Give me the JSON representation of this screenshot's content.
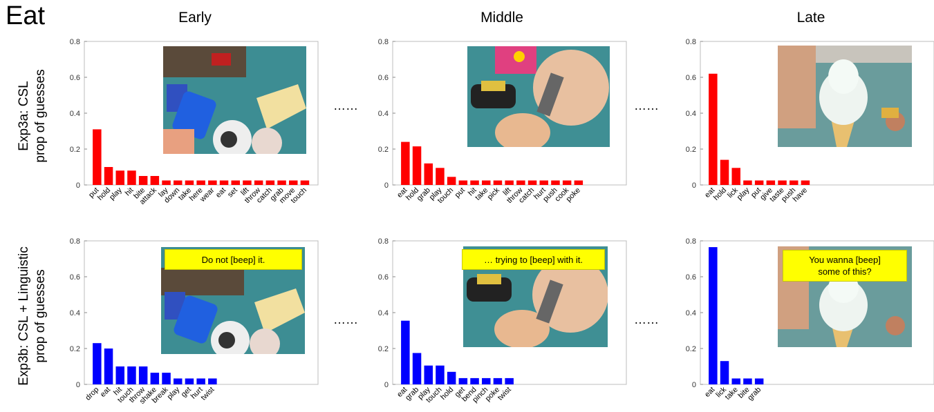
{
  "title": "Eat",
  "columns": [
    "Early",
    "Middle",
    "Late"
  ],
  "rows": [
    {
      "label_line1": "Exp3a: CSL",
      "label_line2": "prop of guesses"
    },
    {
      "label_line1": "Exp3b: CSL + Linguistic",
      "label_line2": "prop of guesses"
    }
  ],
  "ellipsis": "……",
  "colors": {
    "row0": "#ff0000",
    "row1": "#0000ff"
  },
  "captions": [
    "Do not [beep] it.",
    "… trying to [beep] with it.",
    "You wanna [beep]\nsome of this?"
  ],
  "chart_data": [
    {
      "type": "bar",
      "row": 0,
      "col": 0,
      "ylim": [
        0,
        0.8
      ],
      "yticks": [
        "0",
        "0.2",
        "0.4",
        "0.6",
        "0.8"
      ],
      "categories": [
        "put",
        "hold",
        "play",
        "hit",
        "bite",
        "attack",
        "lay",
        "down",
        "take",
        "here",
        "wear",
        "eat",
        "set",
        "lift",
        "throw",
        "catch",
        "grab",
        "move",
        "touch"
      ],
      "values": [
        0.31,
        0.1,
        0.08,
        0.08,
        0.05,
        0.05,
        0.025,
        0.025,
        0.025,
        0.025,
        0.025,
        0.025,
        0.025,
        0.025,
        0.025,
        0.025,
        0.025,
        0.025,
        0.025
      ]
    },
    {
      "type": "bar",
      "row": 0,
      "col": 1,
      "ylim": [
        0,
        0.8
      ],
      "yticks": [
        "0",
        "0.2",
        "0.4",
        "0.6",
        "0.8"
      ],
      "categories": [
        "eat",
        "hold",
        "grab",
        "play",
        "touch",
        "put",
        "hit",
        "take",
        "pick",
        "lift",
        "throw",
        "catch",
        "hurt",
        "push",
        "cook",
        "poke"
      ],
      "values": [
        0.24,
        0.215,
        0.12,
        0.095,
        0.045,
        0.025,
        0.025,
        0.025,
        0.025,
        0.025,
        0.025,
        0.025,
        0.025,
        0.025,
        0.025,
        0.025
      ]
    },
    {
      "type": "bar",
      "row": 0,
      "col": 2,
      "ylim": [
        0,
        0.8
      ],
      "yticks": [
        "0",
        "0.2",
        "0.4",
        "0.6",
        "0.8"
      ],
      "categories": [
        "eat",
        "hold",
        "lick",
        "play",
        "put",
        "give",
        "taste",
        "push",
        "have"
      ],
      "values": [
        0.62,
        0.14,
        0.095,
        0.025,
        0.025,
        0.025,
        0.025,
        0.025,
        0.025
      ]
    },
    {
      "type": "bar",
      "row": 1,
      "col": 0,
      "ylim": [
        0,
        0.8
      ],
      "yticks": [
        "0",
        "0.2",
        "0.4",
        "0.6",
        "0.8"
      ],
      "categories": [
        "drop",
        "eat",
        "hit",
        "touch",
        "throw",
        "shake",
        "break",
        "play",
        "get",
        "hurt",
        "twist"
      ],
      "values": [
        0.23,
        0.2,
        0.1,
        0.1,
        0.1,
        0.065,
        0.065,
        0.033,
        0.033,
        0.033,
        0.033
      ]
    },
    {
      "type": "bar",
      "row": 1,
      "col": 1,
      "ylim": [
        0,
        0.8
      ],
      "yticks": [
        "0",
        "0.2",
        "0.4",
        "0.6",
        "0.8"
      ],
      "categories": [
        "eat",
        "grab",
        "play",
        "touch",
        "hold",
        "get",
        "bend",
        "pinch",
        "poke",
        "twist"
      ],
      "values": [
        0.355,
        0.175,
        0.105,
        0.105,
        0.07,
        0.035,
        0.035,
        0.035,
        0.035,
        0.035
      ]
    },
    {
      "type": "bar",
      "row": 1,
      "col": 2,
      "ylim": [
        0,
        0.8
      ],
      "yticks": [
        "0",
        "0.2",
        "0.4",
        "0.6",
        "0.8"
      ],
      "categories": [
        "eat",
        "lick",
        "take",
        "bite",
        "grab"
      ],
      "values": [
        0.765,
        0.13,
        0.033,
        0.033,
        0.033
      ]
    }
  ]
}
